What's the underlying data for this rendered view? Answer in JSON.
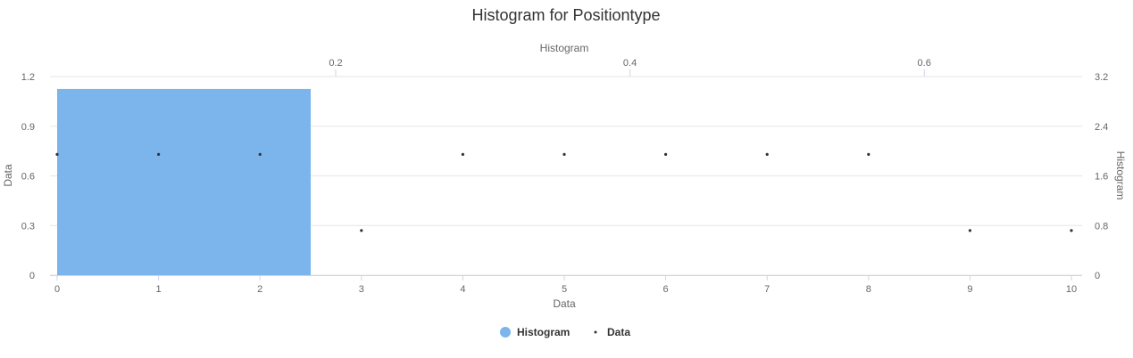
{
  "chart_data": {
    "type": "bar",
    "title": "Histogram for Positiontype",
    "x_axis_bottom": {
      "label": "Data",
      "ticks": [
        "0",
        "1",
        "2",
        "3",
        "4",
        "5",
        "6",
        "7",
        "8",
        "9",
        "10"
      ],
      "range": [
        0,
        10
      ]
    },
    "x_axis_top": {
      "label": "Histogram",
      "ticks": [
        "0.2",
        "0.4",
        "0.6"
      ],
      "range": [
        0.0107,
        0.7
      ]
    },
    "y_axis_left": {
      "label": "Data",
      "ticks": [
        "0",
        "0.3",
        "0.6",
        "0.9",
        "1.2"
      ],
      "range": [
        0,
        1.2
      ]
    },
    "y_axis_right": {
      "label": "Histogram",
      "ticks": [
        "0",
        "0.8",
        "1.6",
        "2.4",
        "3.2"
      ],
      "range": [
        0,
        3.2
      ]
    },
    "grid": true,
    "legend_position": "bottom-center",
    "series": [
      {
        "name": "Histogram",
        "type": "column",
        "color": "#7cb5ec",
        "bins": [
          {
            "x_start": 0,
            "x_end": 2.5,
            "value": 3
          }
        ]
      },
      {
        "name": "Data",
        "type": "scatter",
        "color": "#333333",
        "points": [
          {
            "x": 0,
            "y": 0.73
          },
          {
            "x": 1,
            "y": 0.73
          },
          {
            "x": 2,
            "y": 0.73
          },
          {
            "x": 3,
            "y": 0.27
          },
          {
            "x": 4,
            "y": 0.73
          },
          {
            "x": 5,
            "y": 0.73
          },
          {
            "x": 6,
            "y": 0.73
          },
          {
            "x": 7,
            "y": 0.73
          },
          {
            "x": 8,
            "y": 0.73
          },
          {
            "x": 9,
            "y": 0.27
          },
          {
            "x": 10,
            "y": 0.27
          }
        ]
      }
    ]
  },
  "legend": {
    "histogram_label": "Histogram",
    "data_label": "Data"
  }
}
